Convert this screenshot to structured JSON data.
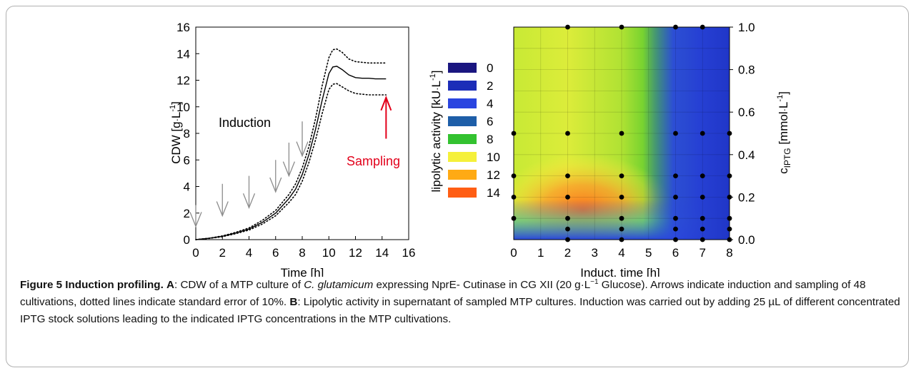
{
  "figure": {
    "caption": {
      "label": "Figure 5 Induction profiling.",
      "part_a": "A",
      "s1": ": CDW of a MTP culture of ",
      "species": "C. glutamicum",
      "s2": " expressing NprE- Cutinase in CG XII (20 g",
      "dot": "·",
      "s3": "L",
      "sup": "−1",
      "s4": " Glucose). Arrows indicate induction and sampling of 48 cultivations, dotted lines indicate standard error of 10%. ",
      "part_b": "B",
      "s5": ": Lipolytic activity in supernatant of sampled MTP cultures. Induction was carried out by adding 25 µL of different concentrated IPTG stock solutions leading to the indicated IPTG concentrations in the MTP cultivations."
    }
  },
  "chart_data": [
    {
      "panel": "A",
      "type": "line",
      "xlabel": "Time [h]",
      "ylabel": {
        "text": "CDW [g",
        "dot": "·",
        "unit": "L",
        "sup": "-1",
        "close": "]"
      },
      "xlim": [
        0,
        16
      ],
      "ylim": [
        0,
        16
      ],
      "x_ticks": [
        "0",
        "2",
        "4",
        "6",
        "8",
        "10",
        "12",
        "14",
        "16"
      ],
      "y_ticks": [
        "0",
        "2",
        "4",
        "6",
        "8",
        "10",
        "12",
        "14",
        "16"
      ],
      "series": [
        {
          "style": "solid",
          "x": [
            0,
            1,
            2,
            3,
            4,
            5,
            6,
            7,
            7.5,
            8,
            8.5,
            9,
            9.5,
            10,
            10.3,
            10.6,
            11,
            11.5,
            12,
            12.5,
            13,
            13.5,
            14,
            14.3
          ],
          "y": [
            0,
            0.1,
            0.25,
            0.5,
            0.8,
            1.3,
            2.0,
            3.1,
            3.8,
            4.9,
            6.4,
            8.3,
            10.5,
            12.5,
            13.0,
            13.05,
            12.8,
            12.4,
            12.2,
            12.15,
            12.15,
            12.1,
            12.1,
            12.1
          ]
        },
        {
          "style": "dotted",
          "x": [
            0,
            1,
            2,
            3,
            4,
            5,
            6,
            7,
            7.5,
            8,
            8.5,
            9,
            9.5,
            10,
            10.3,
            10.6,
            11,
            11.5,
            12,
            12.5,
            13,
            13.5,
            14,
            14.3
          ],
          "y": [
            0,
            0.11,
            0.28,
            0.55,
            0.88,
            1.45,
            2.2,
            3.4,
            4.2,
            5.4,
            7.0,
            9.1,
            11.6,
            13.7,
            14.3,
            14.35,
            14.1,
            13.6,
            13.4,
            13.35,
            13.3,
            13.3,
            13.3,
            13.3
          ]
        },
        {
          "style": "dotted",
          "x": [
            0,
            1,
            2,
            3,
            4,
            5,
            6,
            7,
            7.5,
            8,
            8.5,
            9,
            9.5,
            10,
            10.3,
            10.6,
            11,
            11.5,
            12,
            12.5,
            13,
            13.5,
            14,
            14.3
          ],
          "y": [
            0,
            0.09,
            0.22,
            0.45,
            0.72,
            1.17,
            1.8,
            2.8,
            3.4,
            4.4,
            5.8,
            7.5,
            9.5,
            11.3,
            11.7,
            11.75,
            11.5,
            11.2,
            11.0,
            10.95,
            10.9,
            10.9,
            10.9,
            10.9
          ]
        }
      ],
      "annotations": {
        "induction_label": "Induction",
        "sampling_label": "Sampling",
        "induction_arrows": [
          [
            0,
            2.6,
            1.0
          ],
          [
            2,
            4.2,
            1.8
          ],
          [
            4,
            4.8,
            2.4
          ],
          [
            6,
            6.0,
            3.6
          ],
          [
            7,
            7.3,
            4.8
          ],
          [
            8,
            8.9,
            6.3
          ]
        ],
        "sampling_arrow": [
          14.3,
          7.6,
          10.7
        ],
        "sampling_color": "#e2001a",
        "arrow_color": "#8c8c8c"
      }
    },
    {
      "panel": "B",
      "type": "heatmap",
      "xlabel": "Induct. time [h]",
      "ylabel_right": {
        "pre": "c",
        "sub": "IPTG",
        "open": " [mmol",
        "dot": "·",
        "unit": "L",
        "sup": "-1",
        "close": "]"
      },
      "colorbar_label": {
        "text": "lipolytic activity [kU",
        "dot": "·",
        "unit": "L",
        "sup": "-1",
        "close": "]"
      },
      "xlim": [
        0,
        8
      ],
      "ylim": [
        0,
        1
      ],
      "x_ticks": [
        "0",
        "1",
        "2",
        "3",
        "4",
        "5",
        "6",
        "7",
        "8"
      ],
      "y_ticks": [
        "0.0",
        "0.2",
        "0.4",
        "0.6",
        "0.8",
        "1.0"
      ],
      "legend": [
        {
          "label": "0",
          "color": "#1a1680"
        },
        {
          "label": "2",
          "color": "#1c2db8"
        },
        {
          "label": "4",
          "color": "#2a45e0"
        },
        {
          "label": "6",
          "color": "#1e5ea8"
        },
        {
          "label": "8",
          "color": "#33c230"
        },
        {
          "label": "10",
          "color": "#f5f03a"
        },
        {
          "label": "12",
          "color": "#ffaa14"
        },
        {
          "label": "14",
          "color": "#ff5e14"
        }
      ],
      "sample_points": [
        [
          2,
          1.0
        ],
        [
          4,
          1.0
        ],
        [
          6,
          1.0
        ],
        [
          7,
          1.0
        ],
        [
          0,
          0.5
        ],
        [
          2,
          0.5
        ],
        [
          4,
          0.5
        ],
        [
          6,
          0.5
        ],
        [
          7,
          0.5
        ],
        [
          8,
          0.5
        ],
        [
          0,
          0.3
        ],
        [
          2,
          0.3
        ],
        [
          4,
          0.3
        ],
        [
          6,
          0.3
        ],
        [
          7,
          0.3
        ],
        [
          8,
          0.3
        ],
        [
          0,
          0.2
        ],
        [
          2,
          0.2
        ],
        [
          4,
          0.2
        ],
        [
          6,
          0.2
        ],
        [
          7,
          0.2
        ],
        [
          8,
          0.2
        ],
        [
          0,
          0.1
        ],
        [
          2,
          0.1
        ],
        [
          4,
          0.1
        ],
        [
          6,
          0.1
        ],
        [
          7,
          0.1
        ],
        [
          8,
          0.1
        ],
        [
          2,
          0.05
        ],
        [
          4,
          0.05
        ],
        [
          6,
          0.05
        ],
        [
          7,
          0.05
        ],
        [
          8,
          0.05
        ],
        [
          2,
          0.0
        ],
        [
          4,
          0.0
        ],
        [
          6,
          0.0
        ],
        [
          7,
          0.0
        ],
        [
          8,
          0.0
        ]
      ]
    }
  ]
}
